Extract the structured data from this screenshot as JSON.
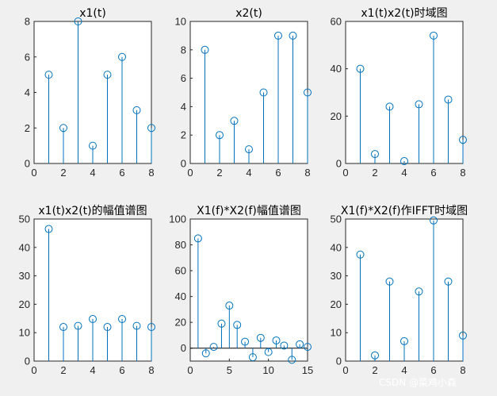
{
  "chart_data": [
    {
      "type": "stem",
      "title": "x1(t)",
      "x": [
        1,
        2,
        3,
        4,
        5,
        6,
        7,
        8
      ],
      "y": [
        5,
        2,
        8,
        1,
        5,
        6,
        3,
        2
      ],
      "xlim": [
        0,
        8
      ],
      "ylim": [
        0,
        8
      ],
      "xticks": [
        0,
        2,
        4,
        6,
        8
      ],
      "yticks": [
        0,
        2,
        4,
        6,
        8
      ],
      "baseline": false
    },
    {
      "type": "stem",
      "title": "x2(t)",
      "x": [
        1,
        2,
        3,
        4,
        5,
        6,
        7,
        8
      ],
      "y": [
        8,
        2,
        3,
        1,
        5,
        9,
        9,
        5
      ],
      "xlim": [
        0,
        8
      ],
      "ylim": [
        0,
        10
      ],
      "xticks": [
        0,
        2,
        4,
        6,
        8
      ],
      "yticks": [
        0,
        2,
        4,
        6,
        8,
        10
      ],
      "baseline": false
    },
    {
      "type": "stem",
      "title": "x1(t)x2(t)时域图",
      "x": [
        1,
        2,
        3,
        4,
        5,
        6,
        7,
        8
      ],
      "y": [
        40,
        4,
        24,
        1,
        25,
        54,
        27,
        10
      ],
      "xlim": [
        0,
        8
      ],
      "ylim": [
        0,
        60
      ],
      "xticks": [
        0,
        2,
        4,
        6,
        8
      ],
      "yticks": [
        0,
        20,
        40,
        60
      ],
      "baseline": false
    },
    {
      "type": "stem",
      "title": "x1(t)x2(t)的幅值谱图",
      "x": [
        1,
        2,
        3,
        4,
        5,
        6,
        7,
        8
      ],
      "y": [
        46.5,
        12,
        12.4,
        14.8,
        12,
        14.8,
        12.4,
        12
      ],
      "xlim": [
        0,
        8
      ],
      "ylim": [
        0,
        50
      ],
      "xticks": [
        0,
        2,
        4,
        6,
        8
      ],
      "yticks": [
        0,
        10,
        20,
        30,
        40,
        50
      ],
      "baseline": false
    },
    {
      "type": "stem",
      "title": "X1(f)*X2(f)幅值谱图",
      "x": [
        1,
        2,
        3,
        4,
        5,
        6,
        7,
        8,
        9,
        10,
        11,
        12,
        13,
        14,
        15
      ],
      "y": [
        85,
        -4,
        1,
        19,
        33,
        18,
        5,
        -7,
        8,
        -3,
        6,
        2,
        -9,
        3,
        1
      ],
      "xlim": [
        0,
        15
      ],
      "ylim": [
        -10,
        100
      ],
      "xticks": [
        0,
        5,
        10,
        15
      ],
      "yticks": [
        0,
        20,
        40,
        60,
        80,
        100
      ],
      "baseline": true
    },
    {
      "type": "stem",
      "title": "X1(f)*X2(f)作IFFT时域图",
      "x": [
        1,
        2,
        3,
        4,
        5,
        6,
        7,
        8
      ],
      "y": [
        37.5,
        2,
        28,
        7,
        24.5,
        49.5,
        28,
        9
      ],
      "xlim": [
        0,
        8
      ],
      "ylim": [
        0,
        50
      ],
      "xticks": [
        0,
        2,
        4,
        6,
        8
      ],
      "yticks": [
        0,
        10,
        20,
        30,
        40,
        50
      ],
      "baseline": false
    }
  ],
  "watermark": "CSDN @菜鸡小森",
  "colors": {
    "stem": "#0072bd",
    "axes": "#262626",
    "background": "#f0f0f0"
  }
}
